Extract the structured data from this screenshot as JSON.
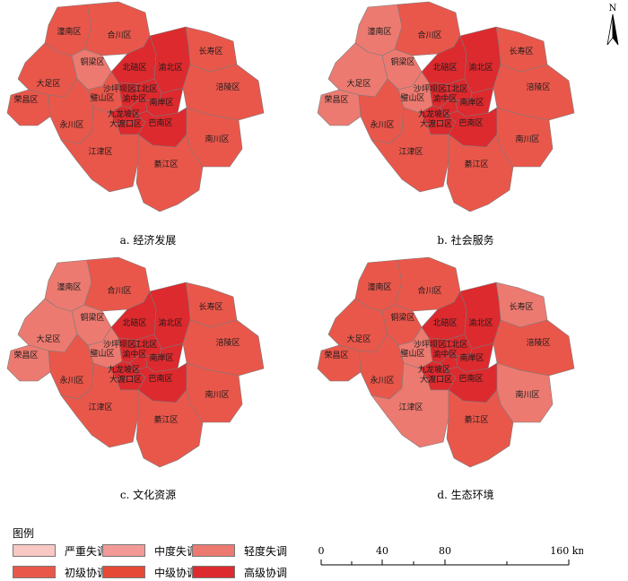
{
  "north_arrow": {
    "label": "N"
  },
  "categories": [
    {
      "key": "c1",
      "label": "严重失调",
      "color": "#F9C8C4"
    },
    {
      "key": "c2",
      "label": "中度失调",
      "color": "#F29A97"
    },
    {
      "key": "c3",
      "label": "轻度失调",
      "color": "#EC7A70"
    },
    {
      "key": "c4",
      "label": "初级协调",
      "color": "#E9574B"
    },
    {
      "key": "c5",
      "label": "中级协调",
      "color": "#E64A37"
    },
    {
      "key": "c6",
      "label": "高级协调",
      "color": "#DD2A2E"
    }
  ],
  "legend": {
    "title": "图例"
  },
  "region_names": {
    "tongnan": "潼南区",
    "hechuan": "合川区",
    "changshou": "长寿区",
    "dazu": "大足区",
    "tongliang": "铜梁区",
    "beibei": "北碚区",
    "yubei": "渝北区",
    "rongchang": "荣昌区",
    "bishan": "璧山区",
    "shapingba": "沙坪坝区",
    "jiangbei": "江北区",
    "yuzhong": "渝中区",
    "nanan": "南岸区",
    "fuling": "涪陵区",
    "jiulongpo": "九龙坡区",
    "dadukou": "大渡口区",
    "banan": "巴南区",
    "yongchuan": "永川区",
    "nanchuan": "南川区",
    "jiangjin": "江津区",
    "qijiang": "綦江区"
  },
  "maps": [
    {
      "id": "a",
      "caption": "a.  经济发展",
      "classes": {
        "tongnan": "c4",
        "hechuan": "c4",
        "changshou": "c4",
        "dazu": "c4",
        "tongliang": "c3",
        "beibei": "c6",
        "yubei": "c6",
        "rongchang": "c4",
        "bishan": "c4",
        "shapingba": "c6",
        "jiangbei": "c6",
        "yuzhong": "c6",
        "nanan": "c6",
        "fuling": "c4",
        "jiulongpo": "c6",
        "dadukou": "c6",
        "banan": "c6",
        "yongchuan": "c4",
        "nanchuan": "c4",
        "jiangjin": "c4",
        "qijiang": "c4"
      }
    },
    {
      "id": "b",
      "caption": "b.  社会服务",
      "classes": {
        "tongnan": "c3",
        "hechuan": "c4",
        "changshou": "c4",
        "dazu": "c3",
        "tongliang": "c3",
        "beibei": "c6",
        "yubei": "c6",
        "rongchang": "c3",
        "bishan": "c3",
        "shapingba": "c6",
        "jiangbei": "c6",
        "yuzhong": "c6",
        "nanan": "c6",
        "fuling": "c4",
        "jiulongpo": "c6",
        "dadukou": "c6",
        "banan": "c6",
        "yongchuan": "c4",
        "nanchuan": "c4",
        "jiangjin": "c4",
        "qijiang": "c4"
      }
    },
    {
      "id": "c",
      "caption": "c.  文化资源",
      "classes": {
        "tongnan": "c3",
        "hechuan": "c4",
        "changshou": "c4",
        "dazu": "c3",
        "tongliang": "c3",
        "beibei": "c6",
        "yubei": "c6",
        "rongchang": "c3",
        "bishan": "c3",
        "shapingba": "c6",
        "jiangbei": "c6",
        "yuzhong": "c6",
        "nanan": "c6",
        "fuling": "c4",
        "jiulongpo": "c6",
        "dadukou": "c6",
        "banan": "c6",
        "yongchuan": "c4",
        "nanchuan": "c4",
        "jiangjin": "c4",
        "qijiang": "c4"
      }
    },
    {
      "id": "d",
      "caption": "d.  生态环境",
      "classes": {
        "tongnan": "c4",
        "hechuan": "c4",
        "changshou": "c3",
        "dazu": "c4",
        "tongliang": "c4",
        "beibei": "c6",
        "yubei": "c6",
        "rongchang": "c4",
        "bishan": "c3",
        "shapingba": "c6",
        "jiangbei": "c6",
        "yuzhong": "c6",
        "nanan": "c6",
        "fuling": "c4",
        "jiulongpo": "c6",
        "dadukou": "c6",
        "banan": "c6",
        "yongchuan": "c4",
        "nanchuan": "c3",
        "jiangjin": "c3",
        "qijiang": "c4"
      }
    }
  ],
  "scale": {
    "ticks": [
      "0",
      "40",
      "80",
      "160 km"
    ]
  }
}
